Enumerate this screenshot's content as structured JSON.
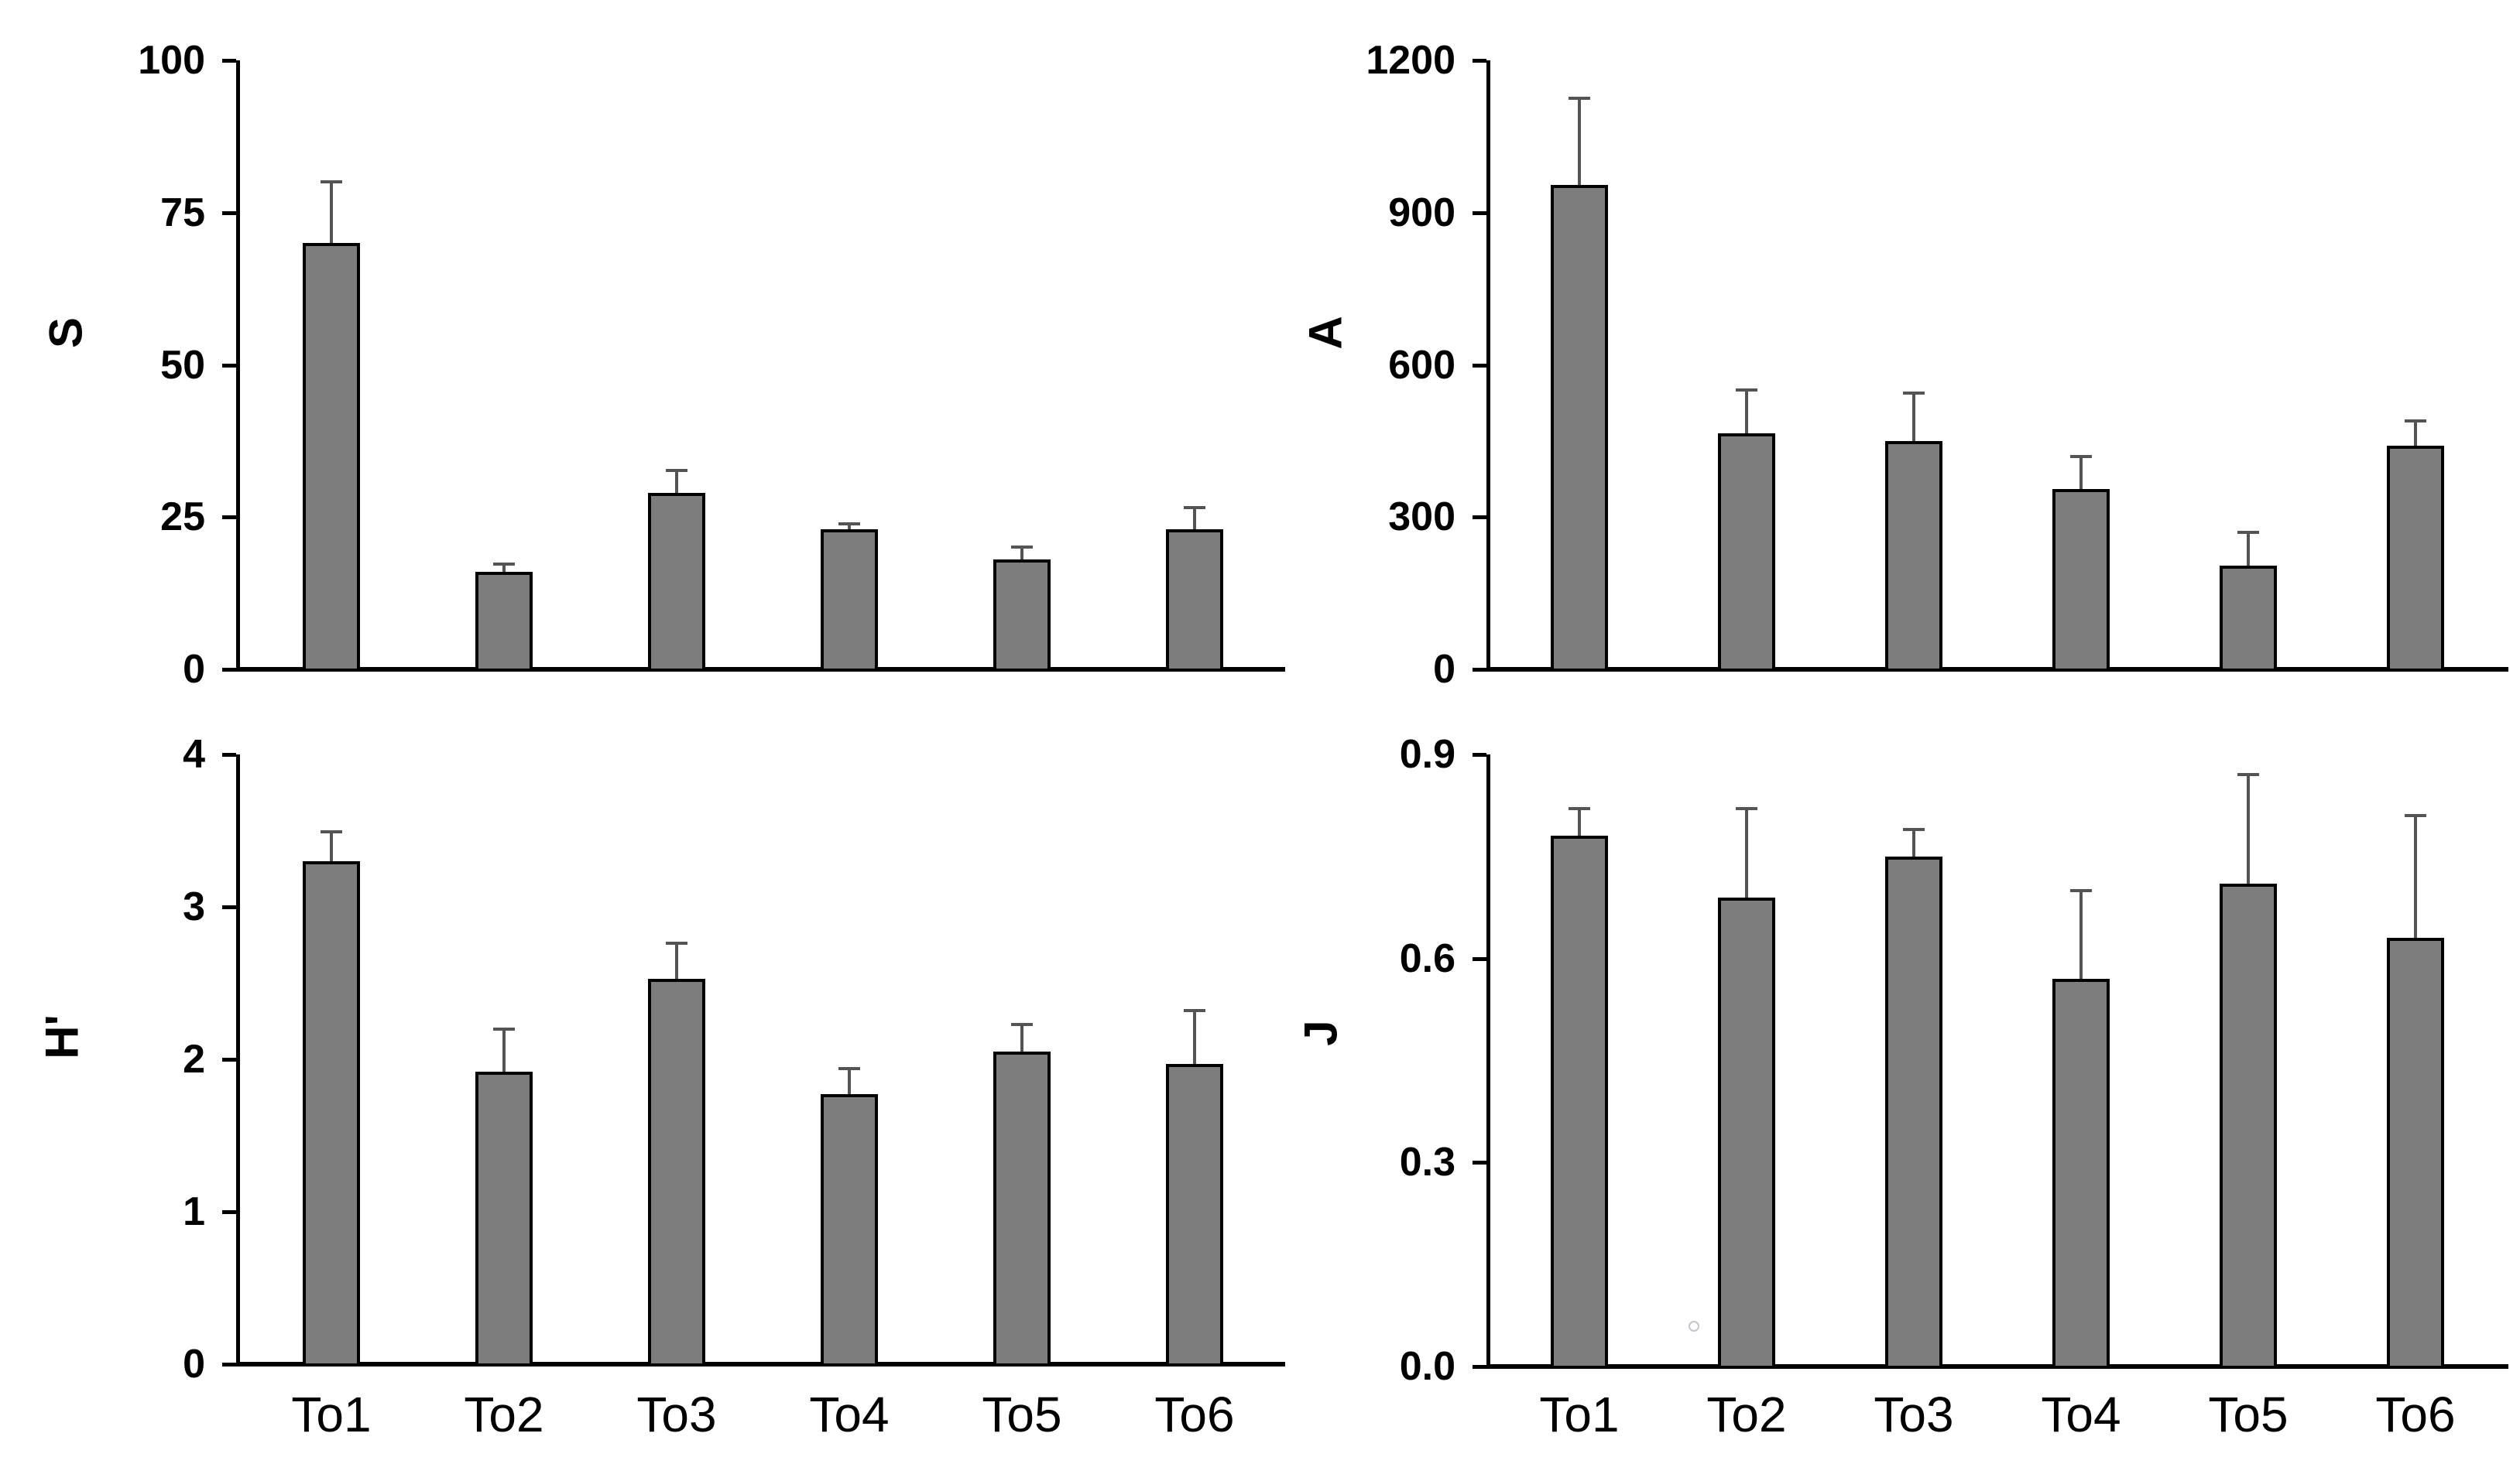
{
  "page": {
    "background_color": "#ffffff",
    "title": ""
  },
  "colors": {
    "bar_fill": "#7d7d7d",
    "bar_border": "#000000",
    "error_bar": "#545454",
    "axis": "#000000",
    "text": "#000000"
  },
  "chart_data": [
    {
      "type": "bar",
      "title": "",
      "ylabel": "S",
      "xlabel": "",
      "categories": [
        "To1",
        "To2",
        "To3",
        "To4",
        "To5",
        "To6"
      ],
      "values": [
        70,
        16,
        29,
        23,
        18,
        23
      ],
      "error_up": [
        10,
        1.3,
        3.6,
        0.9,
        2.1,
        3.6
      ],
      "yticks": [
        "0",
        "25",
        "50",
        "75",
        "100"
      ],
      "ytick_values": [
        0,
        25,
        50,
        75,
        100
      ],
      "ylim": [
        0,
        100
      ],
      "grid": "off",
      "legend": "none",
      "x_labels_shown": false
    },
    {
      "type": "bar",
      "title": "",
      "ylabel": "A",
      "xlabel": "",
      "categories": [
        "To1",
        "To2",
        "To3",
        "To4",
        "To5",
        "To6"
      ],
      "values": [
        955,
        465,
        450,
        355,
        205,
        440
      ],
      "error_up": [
        170,
        85,
        95,
        65,
        65,
        50
      ],
      "yticks": [
        "0",
        "300",
        "600",
        "900",
        "1200"
      ],
      "ytick_values": [
        0,
        300,
        600,
        900,
        1200
      ],
      "ylim": [
        0,
        1200
      ],
      "grid": "off",
      "legend": "none",
      "x_labels_shown": false
    },
    {
      "type": "bar",
      "title": "",
      "ylabel": "H'",
      "xlabel": "",
      "categories": [
        "To1",
        "To2",
        "To3",
        "To4",
        "To5",
        "To6"
      ],
      "values": [
        3.3,
        1.92,
        2.53,
        1.77,
        2.05,
        1.97
      ],
      "error_up": [
        0.19,
        0.28,
        0.23,
        0.17,
        0.18,
        0.35
      ],
      "yticks": [
        "0",
        "1",
        "2",
        "3",
        "4"
      ],
      "ytick_values": [
        0,
        1,
        2,
        3,
        4
      ],
      "ylim": [
        0,
        4
      ],
      "grid": "off",
      "legend": "none",
      "x_labels_shown": true
    },
    {
      "type": "bar",
      "title": "",
      "ylabel": "J",
      "xlabel": "",
      "categories": [
        "To1",
        "To2",
        "To3",
        "To4",
        "To5",
        "To6"
      ],
      "values": [
        0.78,
        0.69,
        0.75,
        0.57,
        0.71,
        0.63
      ],
      "error_up": [
        0.04,
        0.13,
        0.04,
        0.13,
        0.16,
        0.18
      ],
      "yticks": [
        "0.0",
        "0.3",
        "0.6",
        "0.9"
      ],
      "ytick_values": [
        0,
        0.3,
        0.6,
        0.9
      ],
      "ylim": [
        0,
        0.9
      ],
      "grid": "off",
      "legend": "none",
      "x_labels_shown": true,
      "stray_mark": "small faint open circle between To1 and To2 near baseline"
    }
  ]
}
